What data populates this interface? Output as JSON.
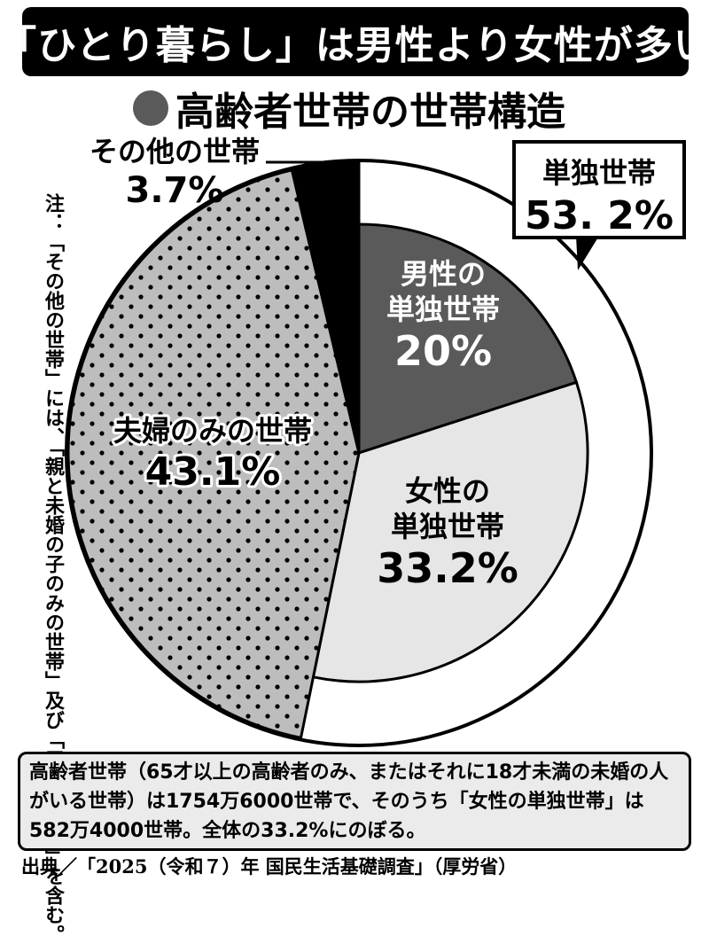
{
  "header": {
    "headline": "「ひとり暮らし」は男性より女性が多い",
    "subtitle": "高齢者世帯の世帯構造"
  },
  "colors": {
    "male_single": "#5a5a5a",
    "female_single": "#e6e6e6",
    "couple": "#bdbdbd",
    "other": "#000000",
    "outer_ring": "#ffffff"
  },
  "chart_data": {
    "type": "pie",
    "title": "高齢者世帯の世帯構造",
    "slices": [
      {
        "label": "男性の単独世帯",
        "label_lines": [
          "男性の",
          "単独世帯"
        ],
        "value": 20,
        "value_label": "20%"
      },
      {
        "label": "女性の単独世帯",
        "label_lines": [
          "女性の",
          "単独世帯"
        ],
        "value": 33.2,
        "value_label": "33.2%"
      },
      {
        "label": "夫婦のみの世帯",
        "label_lines": [
          "夫婦のみの世帯"
        ],
        "value": 43.1,
        "value_label": "43.1%",
        "pattern": "dots"
      },
      {
        "label": "その他の世帯",
        "label_lines": [
          "その他の世帯"
        ],
        "value": 3.7,
        "value_label": "3.7%"
      }
    ],
    "outer_ring": {
      "label": "単独世帯",
      "value": 53.2,
      "value_label": "53. 2%"
    }
  },
  "note": "注：「その他の世帯」には、「親と未婚の子のみの世帯」及び「三世代世帯」を含む。",
  "footnote": "高齢者世帯（65才以上の高齢者のみ、またはそれに18才未満の未婚の人がいる世帯）は1754万6000世帯で、そのうち「女性の単独世帯」は582万4000世帯。全体の33.2%にのぼる。",
  "source": "出典／「2025（令和７）年 国民生活基礎調査」（厚労省）"
}
